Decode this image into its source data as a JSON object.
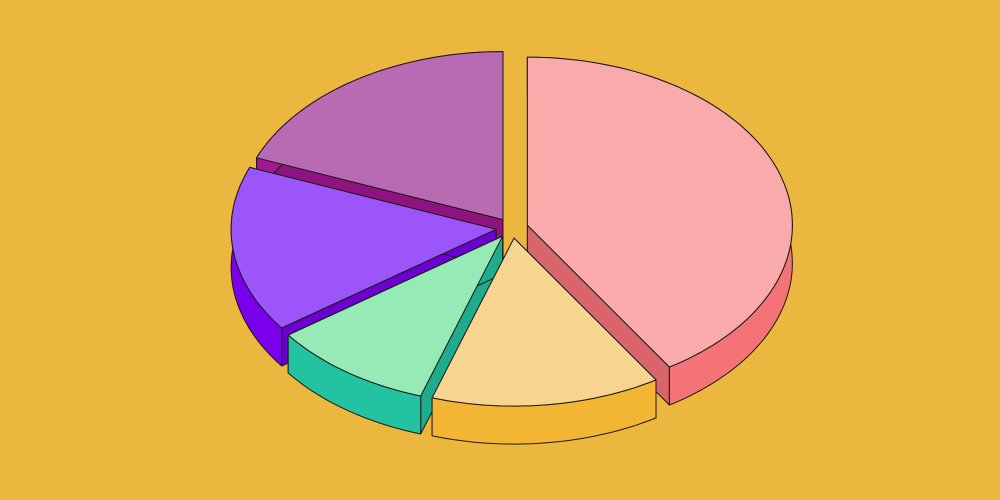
{
  "chart_data": {
    "type": "pie",
    "values": [
      41,
      14,
      10,
      16,
      19
    ],
    "colors": [
      "#f9aaab",
      "#f7d48f",
      "#95eab5",
      "#9b55fb",
      "#b86ab2"
    ],
    "side_colors": [
      "#f47377",
      "#f2b634",
      "#22c3a0",
      "#7a00ec",
      "#a3168f"
    ],
    "background": "#ebb73f"
  }
}
